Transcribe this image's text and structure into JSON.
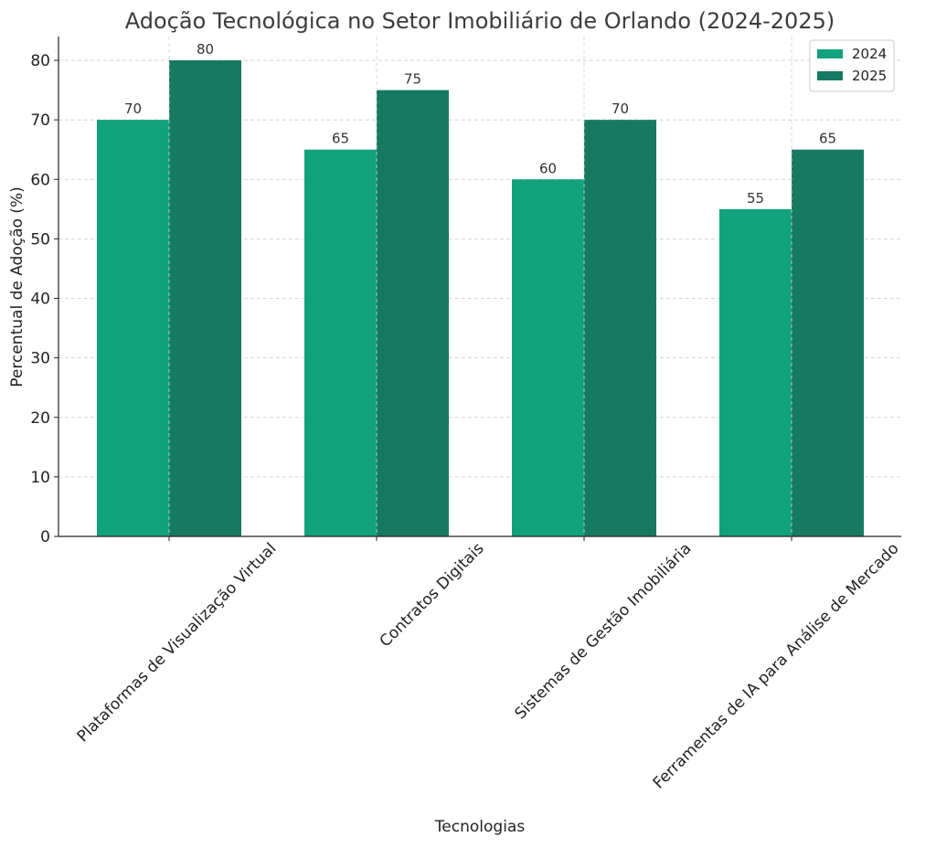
{
  "chart_data": {
    "type": "bar",
    "title": "Adoção Tecnológica no Setor Imobiliário de Orlando (2024-2025)",
    "xlabel": "Tecnologias",
    "ylabel": "Percentual de Adoção (%)",
    "categories": [
      "Plataformas de Visualização Virtual",
      "Contratos Digitais",
      "Sistemas de Gestão Imobiliária",
      "Ferramentas de IA para Análise de Mercado"
    ],
    "series": [
      {
        "name": "2024",
        "values": [
          70,
          65,
          60,
          55
        ],
        "color": "#12a17d"
      },
      {
        "name": "2025",
        "values": [
          80,
          75,
          70,
          65
        ],
        "color": "#167a62"
      }
    ],
    "ylim": [
      0,
      84
    ],
    "yticks": [
      0,
      10,
      20,
      30,
      40,
      50,
      60,
      70,
      80
    ],
    "grid": true,
    "legend": "top-right",
    "data_labels": true
  }
}
